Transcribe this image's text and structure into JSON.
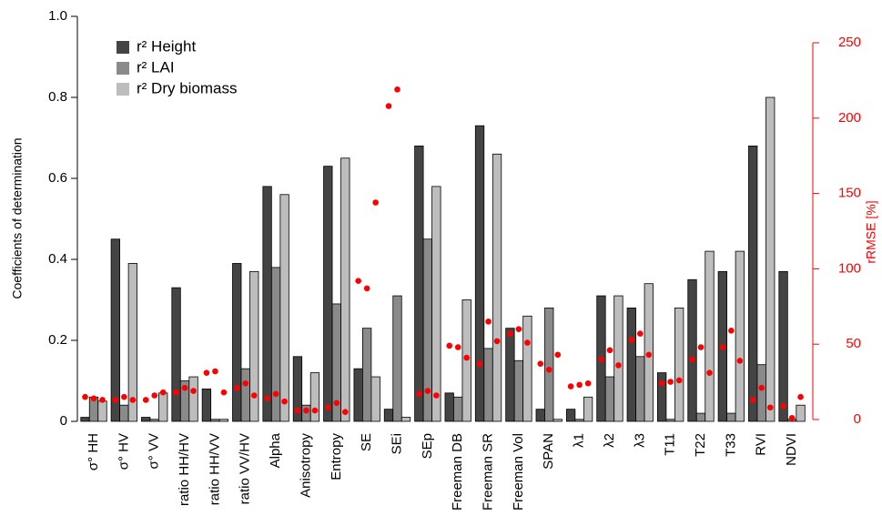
{
  "chart_data": {
    "type": "bar",
    "y_label": "Coefficients of determination",
    "y2_label": "rRMSE [%]",
    "categories": [
      "σ° HH",
      "σ° HV",
      "σ° VV",
      "ratio HH/HV",
      "ratio HH/VV",
      "ratio VV/HV",
      "Alpha",
      "Anisotropy",
      "Entropy",
      "SE",
      "SEi",
      "SEp",
      "Freeman DB",
      "Freeman SR",
      "Freeman Vol",
      "SPAN",
      "λ1",
      "λ2",
      "λ3",
      "T11",
      "T22",
      "T33",
      "RVI",
      "NDVI"
    ],
    "series": [
      {
        "name": "r² Height",
        "color": "#444444",
        "values": [
          0.01,
          0.45,
          0.01,
          0.33,
          0.08,
          0.39,
          0.58,
          0.16,
          0.63,
          0.13,
          0.03,
          0.68,
          0.07,
          0.73,
          0.23,
          0.03,
          0.03,
          0.31,
          0.28,
          0.12,
          0.35,
          0.37,
          0.68,
          0.37
        ],
        "rrmse": [
          15,
          13,
          13,
          18,
          31,
          21,
          14,
          6,
          8,
          92,
          208,
          17,
          49,
          37,
          57,
          37,
          22,
          40,
          53,
          24,
          40,
          48,
          13,
          9
        ]
      },
      {
        "name": "r² LAI",
        "color": "#8a8a8a",
        "values": [
          0.06,
          0.04,
          0.005,
          0.1,
          0.005,
          0.13,
          0.38,
          0.04,
          0.29,
          0.23,
          0.31,
          0.45,
          0.06,
          0.18,
          0.15,
          0.28,
          0.005,
          0.11,
          0.16,
          0.005,
          0.02,
          0.02,
          0.14,
          0.005
        ],
        "rrmse": [
          14,
          15,
          16,
          21,
          32,
          24,
          17,
          6,
          11,
          87,
          219,
          19,
          48,
          65,
          60,
          33,
          23,
          46,
          57,
          25,
          48,
          59,
          21,
          1
        ]
      },
      {
        "name": "r² Dry biomass",
        "color": "#bdbdbd",
        "values": [
          0.05,
          0.39,
          0.07,
          0.11,
          0.005,
          0.37,
          0.56,
          0.12,
          0.65,
          0.11,
          0.01,
          0.58,
          0.3,
          0.66,
          0.26,
          0.005,
          0.06,
          0.31,
          0.34,
          0.28,
          0.42,
          0.42,
          0.8,
          0.04
        ],
        "rrmse": [
          13,
          13,
          18,
          19,
          18,
          16,
          12,
          6,
          5,
          144,
          null,
          16,
          41,
          52,
          51,
          43,
          24,
          36,
          43,
          26,
          31,
          39,
          8,
          15
        ]
      }
    ],
    "dot_color": "#ff0000",
    "ylim": [
      0,
      1
    ],
    "yticks": [
      0,
      0.2,
      0.4,
      0.6,
      0.8,
      {
        "value": 1,
        "label": "1.0"
      }
    ],
    "y2lim": [
      0,
      250
    ],
    "y2ticks": [
      0,
      50,
      100,
      150,
      200,
      250
    ],
    "legend": "top-left"
  }
}
